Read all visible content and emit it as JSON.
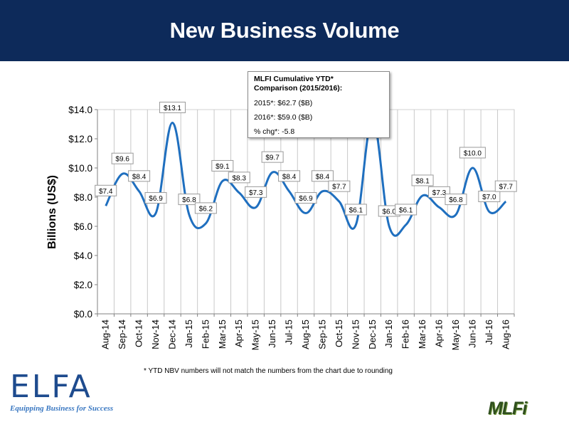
{
  "header": {
    "title": "New Business Volume"
  },
  "colors": {
    "header_bg": "#0d2a5a",
    "line": "#1f6fbf",
    "grid": "#c8c8c8"
  },
  "chart_data": {
    "type": "line",
    "title": "New Business Volume",
    "xlabel": "",
    "ylabel": "Billions (US$)",
    "ylim": [
      0,
      14
    ],
    "yticks": [
      0,
      2,
      4,
      6,
      8,
      10,
      12,
      14
    ],
    "ytick_labels": [
      "$0.0",
      "$2.0",
      "$4.0",
      "$6.0",
      "$8.0",
      "$10.0",
      "$12.0",
      "$14.0"
    ],
    "grid": "vertical",
    "categories": [
      "Aug-14",
      "Sep-14",
      "Oct-14",
      "Nov-14",
      "Dec-14",
      "Jan-15",
      "Feb-15",
      "Mar-15",
      "Apr-15",
      "May-15",
      "Jun-15",
      "Jul-15",
      "Aug-15",
      "Sep-15",
      "Oct-15",
      "Nov-15",
      "Dec-15",
      "Jan-16",
      "Feb-16",
      "Mar-16",
      "Apr-16",
      "May-16",
      "Jun-16",
      "Jul-16",
      "Aug-16"
    ],
    "values": [
      7.4,
      9.6,
      8.4,
      6.9,
      13.1,
      6.8,
      6.2,
      9.1,
      8.3,
      7.3,
      9.7,
      8.4,
      6.9,
      8.4,
      7.7,
      6.1,
      13.4,
      6.0,
      6.1,
      8.1,
      7.3,
      6.8,
      10.0,
      7.0,
      7.7
    ],
    "data_labels": [
      "$7.4",
      "$9.6",
      "$8.4",
      "$6.9",
      "$13.1",
      "$6.8",
      "$6.2",
      "$9.1",
      "$8.3",
      "$7.3",
      "$9.7",
      "$8.4",
      "$6.9",
      "$8.4",
      "$7.7",
      "$6.1",
      "",
      "$6.0",
      "$6.1",
      "$8.1",
      "$7.3",
      "$6.8",
      "$10.0",
      "$7.0",
      "$7.7"
    ]
  },
  "info_box": {
    "title": "MLFI Cumulative YTD*\nComparison (2015/2016):",
    "line_2015": "2015*:  $62.7 ($B)",
    "line_2016": "2016*:  $59.0  ($B)",
    "line_chg": "% chg*:  -5.8"
  },
  "footnote": "*  YTD NBV numbers will not match the numbers from the chart due to rounding",
  "logos": {
    "elfa": "ELFA",
    "elfa_tagline": "Equipping Business for Success",
    "mlfi": "MLFi"
  }
}
